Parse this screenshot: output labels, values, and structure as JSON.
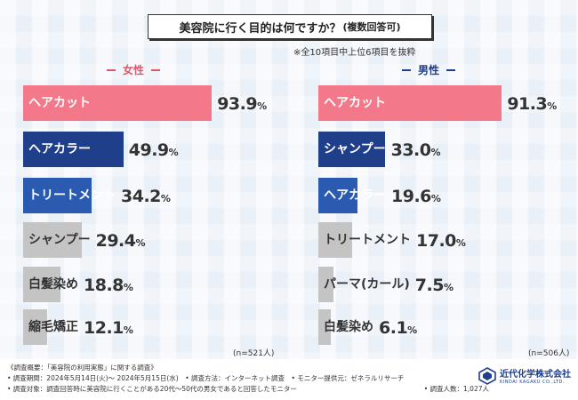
{
  "title": {
    "main": "美容院に行く目的は何ですか？",
    "sub": "(複数回答可)"
  },
  "note": "※全10項目中上位6項目を抜粋",
  "colors": {
    "female_accent": "#e0576b",
    "male_accent": "#1f3f8a",
    "top_bar": "#f2788a",
    "dark_bar": "#1f3f8a",
    "mid_bar": "#2a5bb0",
    "gray_bar": "#c4c4c4"
  },
  "chart_data": [
    {
      "type": "bar",
      "title": "女性",
      "categories": [
        "ヘアカット",
        "ヘアカラー",
        "トリートメント",
        "シャンプー",
        "白髪染め",
        "縮毛矯正"
      ],
      "values": [
        93.9,
        49.9,
        34.2,
        29.4,
        18.8,
        12.1
      ],
      "value_labels": [
        "93.9",
        "49.9",
        "34.2",
        "29.4",
        "18.8",
        "12.1"
      ],
      "unit": "%",
      "n": "(n=521人)",
      "xlim": [
        0,
        100
      ]
    },
    {
      "type": "bar",
      "title": "男性",
      "categories": [
        "ヘアカット",
        "シャンプー",
        "ヘアカラー",
        "トリートメント",
        "パーマ(カール)",
        "白髪染め"
      ],
      "values": [
        91.3,
        33.0,
        19.6,
        17.0,
        7.5,
        6.1
      ],
      "value_labels": [
        "91.3",
        "33.0",
        "19.6",
        "17.0",
        "7.5",
        "6.1"
      ],
      "unit": "%",
      "n": "(n=506人)",
      "xlim": [
        0,
        100
      ]
    }
  ],
  "footer": {
    "line1": "《調査概要：「美容院の利用実態」に関する調査》",
    "line2": "• 調査期間：2024年5月14日(火)～ 2024年5月15日(水)　• 調査方法：インターネット調査　• モニター提供元：ゼネラルリサーチ",
    "line3": "• 調査対象：調査回答時に美容院に行くことがある20代～50代の男女であると回答したモニター",
    "respondents": "• 調査人数：1,027人",
    "company": "近代化学株式会社",
    "company_en": "KINDAI KAGAKU CO.,LTD."
  }
}
